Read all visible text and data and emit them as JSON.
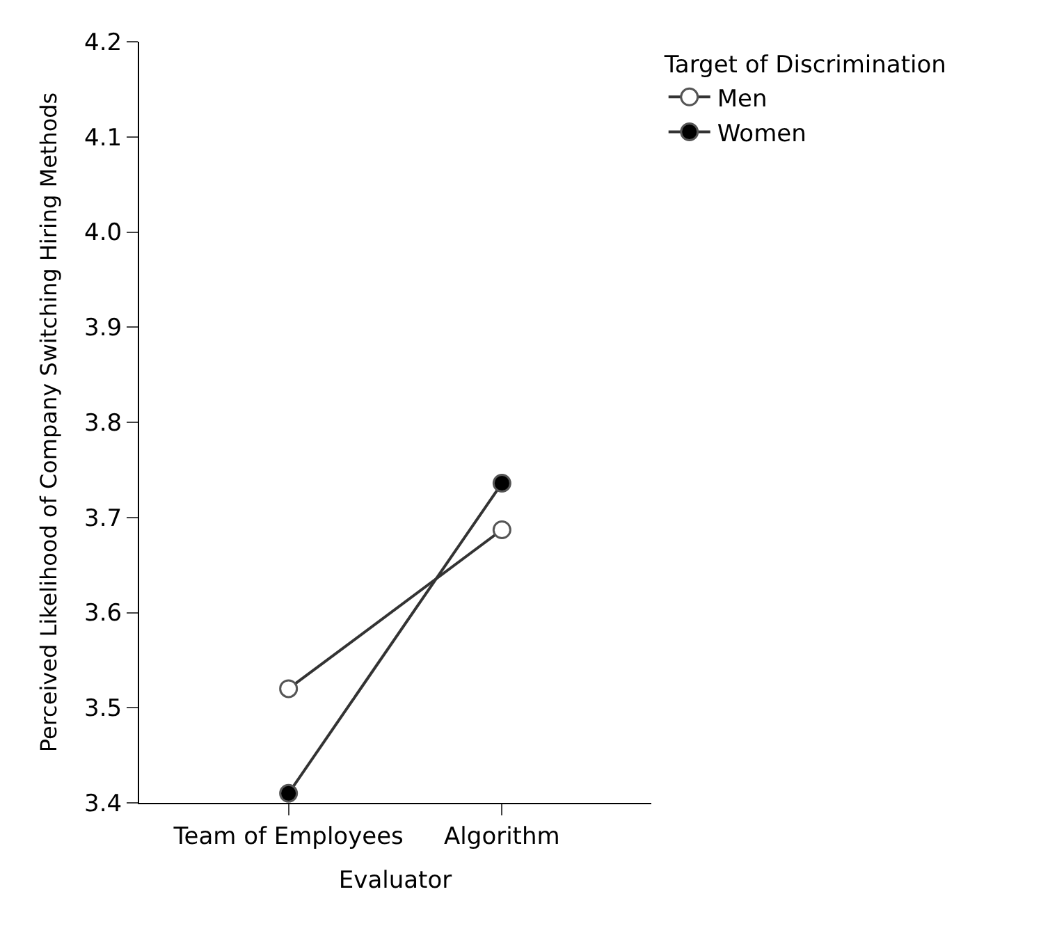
{
  "chart_data": {
    "type": "line",
    "xlabel": "Evaluator",
    "ylabel": "Perceived Likelihood of Company Switching Hiring Methods",
    "legend_title": "Target of Discrimination",
    "categories": [
      "Team of Employees",
      "Algorithm"
    ],
    "series": [
      {
        "name": "Men",
        "color": "#ffffff",
        "values": [
          3.52,
          3.687
        ]
      },
      {
        "name": "Women",
        "color": "#000000",
        "values": [
          3.41,
          3.736
        ]
      }
    ],
    "ylim": [
      3.4,
      4.2
    ],
    "yticks": [
      3.4,
      3.5,
      3.6,
      3.7,
      3.8,
      3.9,
      {
        "value": 4,
        "label": "4.0"
      },
      4.1,
      4.2
    ],
    "marker": "circle",
    "line_style": "solid",
    "grid": false,
    "legend": "top right"
  }
}
